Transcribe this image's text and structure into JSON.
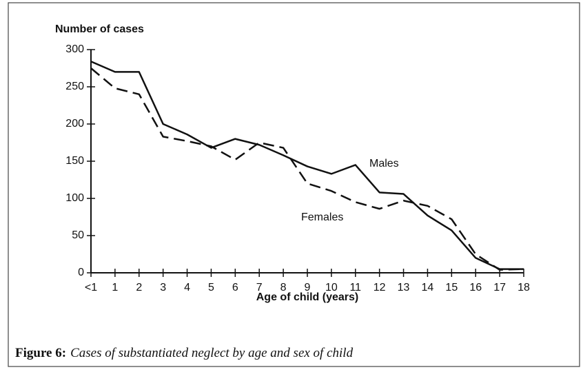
{
  "chart_data": {
    "type": "line",
    "y_axis_label": "Number of cases",
    "x_axis_label": "Age of child (years)",
    "caption_label": "Figure 6:",
    "caption": "Cases of substantiated neglect by age and sex of child",
    "categories": [
      "<1",
      "1",
      "2",
      "3",
      "4",
      "5",
      "6",
      "7",
      "8",
      "9",
      "10",
      "11",
      "12",
      "13",
      "14",
      "15",
      "16",
      "17",
      "18"
    ],
    "series": [
      {
        "name": "Males",
        "color": "#111111",
        "dashed": false,
        "values": [
          284,
          270,
          270,
          200,
          186,
          168,
          180,
          172,
          158,
          143,
          133,
          145,
          108,
          106,
          77,
          57,
          20,
          5,
          5
        ]
      },
      {
        "name": "Females",
        "color": "#111111",
        "dashed": true,
        "values": [
          275,
          248,
          240,
          183,
          177,
          170,
          152,
          175,
          168,
          120,
          110,
          95,
          86,
          97,
          90,
          72,
          25,
          4,
          5
        ]
      }
    ],
    "ylim": [
      0,
      300
    ],
    "yticks": [
      0,
      50,
      100,
      150,
      200,
      250,
      300
    ],
    "grid": false
  }
}
